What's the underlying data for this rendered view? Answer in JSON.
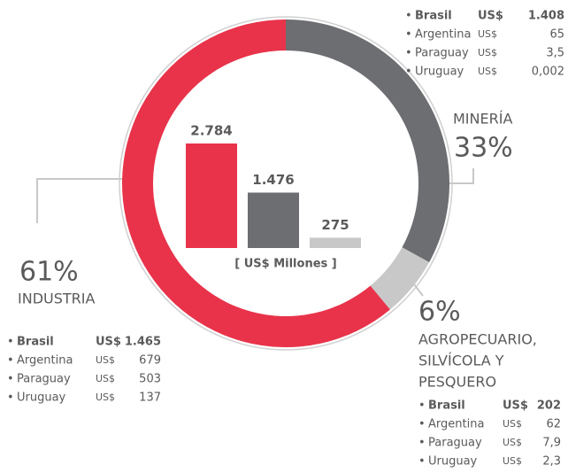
{
  "chart_data": [
    {
      "type": "pie",
      "categories": [
        "INDUSTRIA",
        "MINERÍA",
        "AGROPECUARIO, SILVÍCOLA Y PESQUERO"
      ],
      "category_lines": [
        [
          "INDUSTRIA"
        ],
        [
          "MINERÍA"
        ],
        [
          "AGROPECUARIO,",
          "SILVÍCOLA Y",
          "PESQUERO"
        ]
      ],
      "values": [
        61,
        33,
        6
      ],
      "value_labels": [
        "61%",
        "33%",
        "6%"
      ],
      "colors": [
        "#e8334a",
        "#6d6e71",
        "#c8c8c8"
      ],
      "breakdowns": [
        [
          {
            "country": "Brasil",
            "currency": "US$",
            "amount": "1.465"
          },
          {
            "country": "Argentina",
            "currency": "US$",
            "amount": "679"
          },
          {
            "country": "Paraguay",
            "currency": "US$",
            "amount": "503"
          },
          {
            "country": "Uruguay",
            "currency": "US$",
            "amount": "137"
          }
        ],
        [
          {
            "country": "Brasil",
            "currency": "US$",
            "amount": "1.408"
          },
          {
            "country": "Argentina",
            "currency": "US$",
            "amount": "65"
          },
          {
            "country": "Paraguay",
            "currency": "US$",
            "amount": "3,5"
          },
          {
            "country": "Uruguay",
            "currency": "US$",
            "amount": "0,002"
          }
        ],
        [
          {
            "country": "Brasil",
            "currency": "US$",
            "amount": "202"
          },
          {
            "country": "Argentina",
            "currency": "US$",
            "amount": "62"
          },
          {
            "country": "Paraguay",
            "currency": "US$",
            "amount": "7,9"
          },
          {
            "country": "Uruguay",
            "currency": "US$",
            "amount": "2,3"
          }
        ]
      ]
    },
    {
      "type": "bar",
      "values": [
        2784,
        1476,
        275
      ],
      "value_labels": [
        "2.784",
        "1.476",
        "275"
      ],
      "colors": [
        "#e8334a",
        "#6d6e71",
        "#c8c8c8"
      ],
      "ylim": [
        0,
        2784
      ],
      "ylabel": "[ US$ Millones ]"
    }
  ]
}
